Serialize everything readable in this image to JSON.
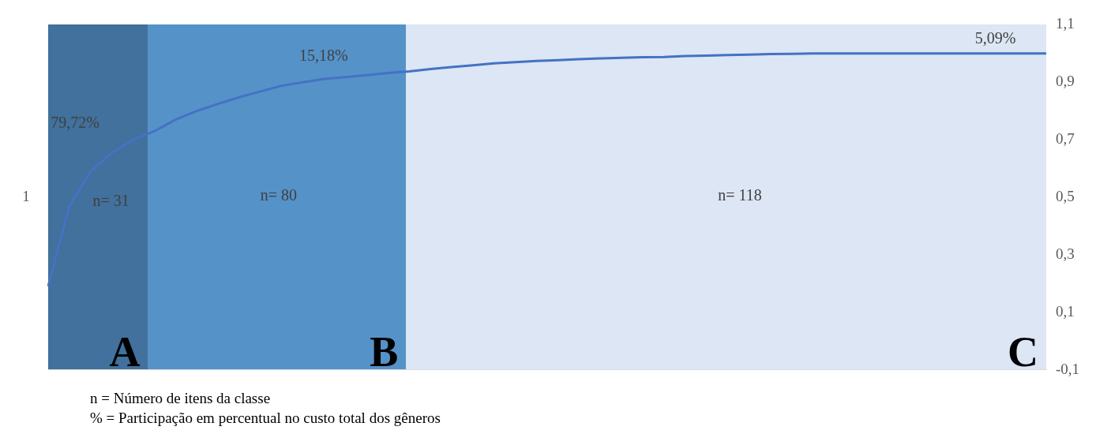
{
  "chart_data": {
    "type": "line",
    "categories": [
      null,
      null,
      null,
      null,
      null,
      null,
      null,
      null,
      null,
      null,
      null,
      null,
      null,
      null,
      null,
      null,
      null,
      null,
      null,
      null,
      null,
      null,
      null,
      null,
      null,
      null,
      null,
      null,
      null,
      null,
      null,
      null,
      null,
      null,
      null,
      null,
      null,
      null,
      null,
      null,
      null,
      null,
      null,
      null,
      null,
      null,
      null,
      null
    ],
    "ylim": [
      -0.1,
      1.1
    ],
    "yticks": [
      {
        "value": -0.1,
        "label": "-0,1"
      },
      {
        "value": 0.1,
        "label": "0,1"
      },
      {
        "value": 0.3,
        "label": "0,3"
      },
      {
        "value": 0.5,
        "label": "0,5"
      },
      {
        "value": 0.7,
        "label": "0,7"
      },
      {
        "value": 0.9,
        "label": "0,9"
      },
      {
        "value": 1.1,
        "label": "1,1"
      }
    ],
    "tick_labels": "y",
    "grid": false,
    "legend": false,
    "marker": "none",
    "line_style": "solid",
    "series": [
      {
        "color": "#4472c4",
        "values": [
          0.19,
          0.47,
          0.59,
          0.655,
          0.7,
          0.73,
          0.77,
          0.8,
          0.825,
          0.848,
          0.868,
          0.888,
          0.9,
          0.912,
          0.918,
          0.925,
          0.932,
          0.938,
          0.946,
          0.953,
          0.959,
          0.966,
          0.97,
          0.974,
          0.977,
          0.98,
          0.983,
          0.985,
          0.987,
          0.988,
          0.991,
          0.993,
          0.995,
          0.996,
          0.998,
          0.999,
          1.0,
          1.0,
          1.0,
          1.0,
          1.0,
          1.0,
          1.0,
          1.0,
          1.0,
          1.0,
          1.0,
          1.0
        ]
      }
    ],
    "annotations": [
      "79,72%",
      "15,18%",
      "5,09%",
      "n= 31",
      "n= 80",
      "n= 118",
      "A",
      "B",
      "C",
      "1",
      "n = Número de itens da classe",
      "% = Participação em percentual no custo total dos gêneros"
    ]
  }
}
